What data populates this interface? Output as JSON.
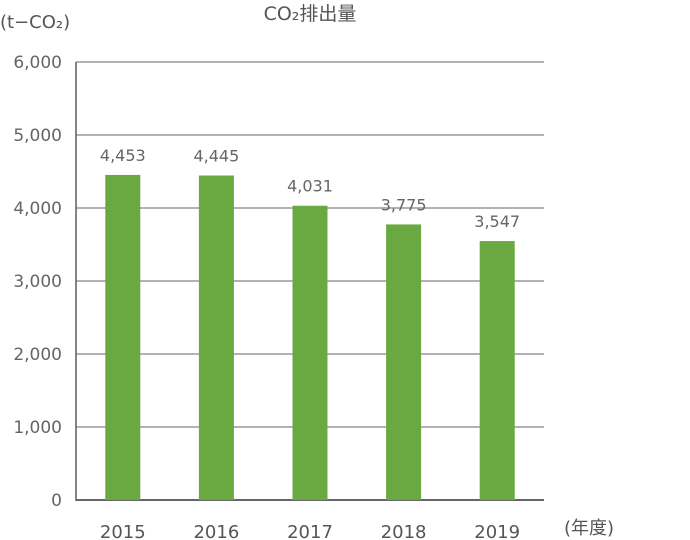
{
  "chart_data": {
    "type": "bar",
    "title": "CO₂排出量",
    "ylabel": "(t−CO₂)",
    "xlabel": "(年度)",
    "categories": [
      "2015",
      "2016",
      "2017",
      "2018",
      "2019"
    ],
    "values": [
      4453,
      4445,
      4031,
      3775,
      3547
    ],
    "data_labels": [
      "4,453",
      "4,445",
      "4,031",
      "3,775",
      "3,547"
    ],
    "yticks": [
      "0",
      "1,000",
      "2,000",
      "3,000",
      "4,000",
      "5,000",
      "6,000"
    ],
    "ytick_values": [
      0,
      1000,
      2000,
      3000,
      4000,
      5000,
      6000
    ],
    "ylim": [
      0,
      6000
    ],
    "grid": true,
    "colors": {
      "bar": "#6aa842",
      "grid": "#999999",
      "axis": "#666666"
    }
  }
}
